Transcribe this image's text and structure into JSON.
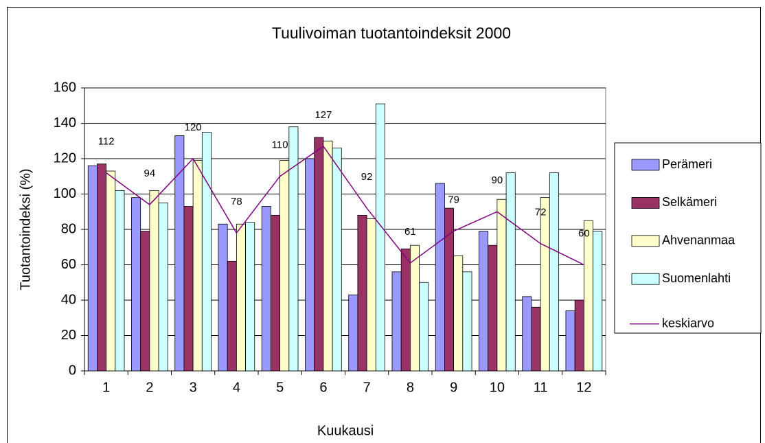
{
  "chart_data": {
    "type": "bar",
    "title": "Tuulivoiman tuotantoindeksit 2000",
    "x_label": "Kuukausi",
    "y_label": "Tuotantoindeksi (%)",
    "categories": [
      "1",
      "2",
      "3",
      "4",
      "5",
      "6",
      "7",
      "8",
      "9",
      "10",
      "11",
      "12"
    ],
    "series": [
      {
        "name": "Perämeri",
        "color": "#9999ff",
        "values": [
          116,
          98,
          133,
          83,
          93,
          120,
          43,
          56,
          106,
          79,
          42,
          34
        ]
      },
      {
        "name": "Selkämeri",
        "color": "#993366",
        "values": [
          117,
          79,
          93,
          62,
          88,
          132,
          88,
          69,
          92,
          71,
          36,
          40
        ]
      },
      {
        "name": "Ahvenanmaa",
        "color": "#ffffcc",
        "values": [
          113,
          102,
          119,
          83,
          119,
          130,
          86,
          71,
          65,
          97,
          98,
          85
        ]
      },
      {
        "name": "Suomenlahti",
        "color": "#ccffff",
        "values": [
          102,
          95,
          135,
          84,
          138,
          126,
          151,
          50,
          56,
          112,
          112,
          79
        ]
      },
      {
        "name": "keskiarvo",
        "color": "#800080",
        "type": "line",
        "data_labels": true,
        "values": [
          112,
          94,
          120,
          78,
          110,
          127,
          92,
          61,
          79,
          90,
          72,
          60
        ]
      }
    ],
    "ylim": [
      0,
      160
    ],
    "yticks": [
      0,
      20,
      40,
      60,
      80,
      100,
      120,
      140,
      160
    ],
    "grid": true,
    "legend": "right"
  }
}
